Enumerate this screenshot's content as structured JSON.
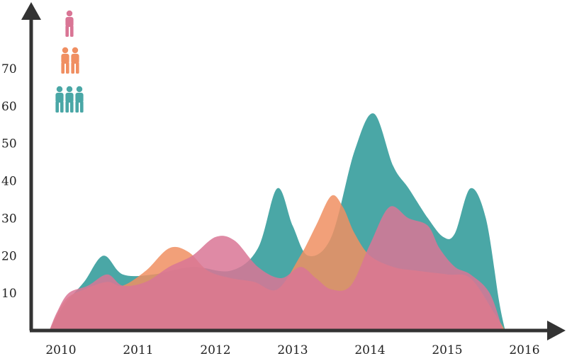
{
  "chart_data": {
    "type": "area",
    "title": "",
    "xlabel": "",
    "ylabel": "",
    "x_ticks": [
      "2010",
      "2011",
      "2012",
      "2013",
      "2014",
      "2015",
      "2016"
    ],
    "y_ticks": [
      "10",
      "20",
      "30",
      "40",
      "50",
      "60",
      "70"
    ],
    "xlim": [
      2010,
      2016
    ],
    "ylim": [
      0,
      70
    ],
    "grid": false,
    "legend": "top-left icons (1 person, 2 people, 3 people)",
    "series": [
      {
        "color": "#4aa7a6",
        "icon": "three-people-icon",
        "points": [
          [
            2009.85,
            0
          ],
          [
            2010.05,
            7
          ],
          [
            2010.3,
            13
          ],
          [
            2010.55,
            20
          ],
          [
            2010.8,
            15
          ],
          [
            2011.2,
            15
          ],
          [
            2011.7,
            17
          ],
          [
            2012.2,
            16
          ],
          [
            2012.55,
            22
          ],
          [
            2012.8,
            38
          ],
          [
            2013.0,
            28
          ],
          [
            2013.2,
            20
          ],
          [
            2013.5,
            25
          ],
          [
            2013.8,
            48
          ],
          [
            2014.05,
            58
          ],
          [
            2014.3,
            44
          ],
          [
            2014.5,
            38
          ],
          [
            2014.75,
            30
          ],
          [
            2014.95,
            25
          ],
          [
            2015.1,
            26
          ],
          [
            2015.3,
            38
          ],
          [
            2015.5,
            30
          ],
          [
            2015.67,
            8
          ],
          [
            2015.75,
            0
          ]
        ]
      },
      {
        "color": "#f08f62",
        "icon": "two-people-icon",
        "points": [
          [
            2009.85,
            0
          ],
          [
            2010.05,
            8
          ],
          [
            2010.3,
            11
          ],
          [
            2010.6,
            13
          ],
          [
            2010.8,
            12
          ],
          [
            2011.1,
            16
          ],
          [
            2011.4,
            22
          ],
          [
            2011.65,
            21
          ],
          [
            2011.9,
            16
          ],
          [
            2012.2,
            14
          ],
          [
            2012.5,
            13
          ],
          [
            2012.8,
            11
          ],
          [
            2013.1,
            20
          ],
          [
            2013.3,
            28
          ],
          [
            2013.5,
            36
          ],
          [
            2013.65,
            33
          ],
          [
            2013.8,
            26
          ],
          [
            2014.0,
            20
          ],
          [
            2014.3,
            17
          ],
          [
            2014.6,
            16
          ],
          [
            2015.0,
            15
          ],
          [
            2015.3,
            14
          ],
          [
            2015.6,
            5
          ],
          [
            2015.75,
            0
          ]
        ]
      },
      {
        "color": "#d97595",
        "icon": "single-person-icon",
        "points": [
          [
            2009.85,
            0
          ],
          [
            2009.95,
            5
          ],
          [
            2010.1,
            10
          ],
          [
            2010.35,
            12
          ],
          [
            2010.6,
            15
          ],
          [
            2010.8,
            12
          ],
          [
            2011.1,
            13
          ],
          [
            2011.4,
            17
          ],
          [
            2011.7,
            20
          ],
          [
            2012.0,
            25
          ],
          [
            2012.25,
            24
          ],
          [
            2012.55,
            17
          ],
          [
            2012.85,
            14
          ],
          [
            2013.1,
            17
          ],
          [
            2013.3,
            14
          ],
          [
            2013.5,
            11
          ],
          [
            2013.75,
            12
          ],
          [
            2014.0,
            23
          ],
          [
            2014.25,
            33
          ],
          [
            2014.5,
            30
          ],
          [
            2014.75,
            28
          ],
          [
            2014.9,
            22
          ],
          [
            2015.1,
            17
          ],
          [
            2015.3,
            15
          ],
          [
            2015.55,
            10
          ],
          [
            2015.72,
            0
          ]
        ]
      }
    ]
  }
}
